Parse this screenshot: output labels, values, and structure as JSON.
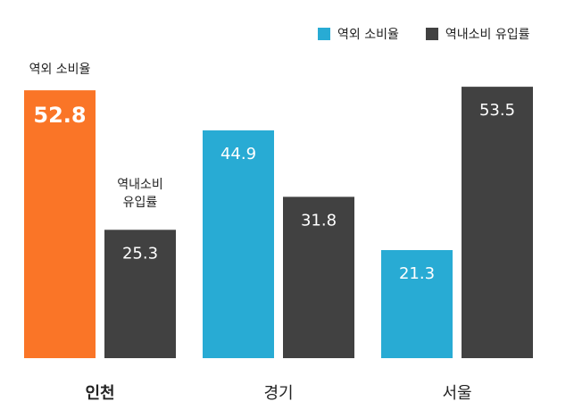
{
  "colors": {
    "highlight": "#FA7527",
    "outflow": "#28ABD4",
    "inflow": "#414141",
    "text": "#222222",
    "label_on_bar": "#ffffff"
  },
  "chart_data": {
    "type": "bar",
    "title": "",
    "xlabel": "",
    "ylabel": "",
    "ylim": [
      0,
      55
    ],
    "grid": false,
    "legend_position": "top-right",
    "categories": [
      "인천",
      "경기",
      "서울"
    ],
    "highlight_category": "인천",
    "series": [
      {
        "name": "역외 소비율",
        "values": [
          52.8,
          44.9,
          21.3
        ]
      },
      {
        "name": "역내소비 유입률",
        "values": [
          25.3,
          31.8,
          53.5
        ]
      }
    ],
    "annotations": {
      "outflow": "역외 소비율",
      "inflow_line1": "역내소비",
      "inflow_line2": "유입률"
    }
  }
}
